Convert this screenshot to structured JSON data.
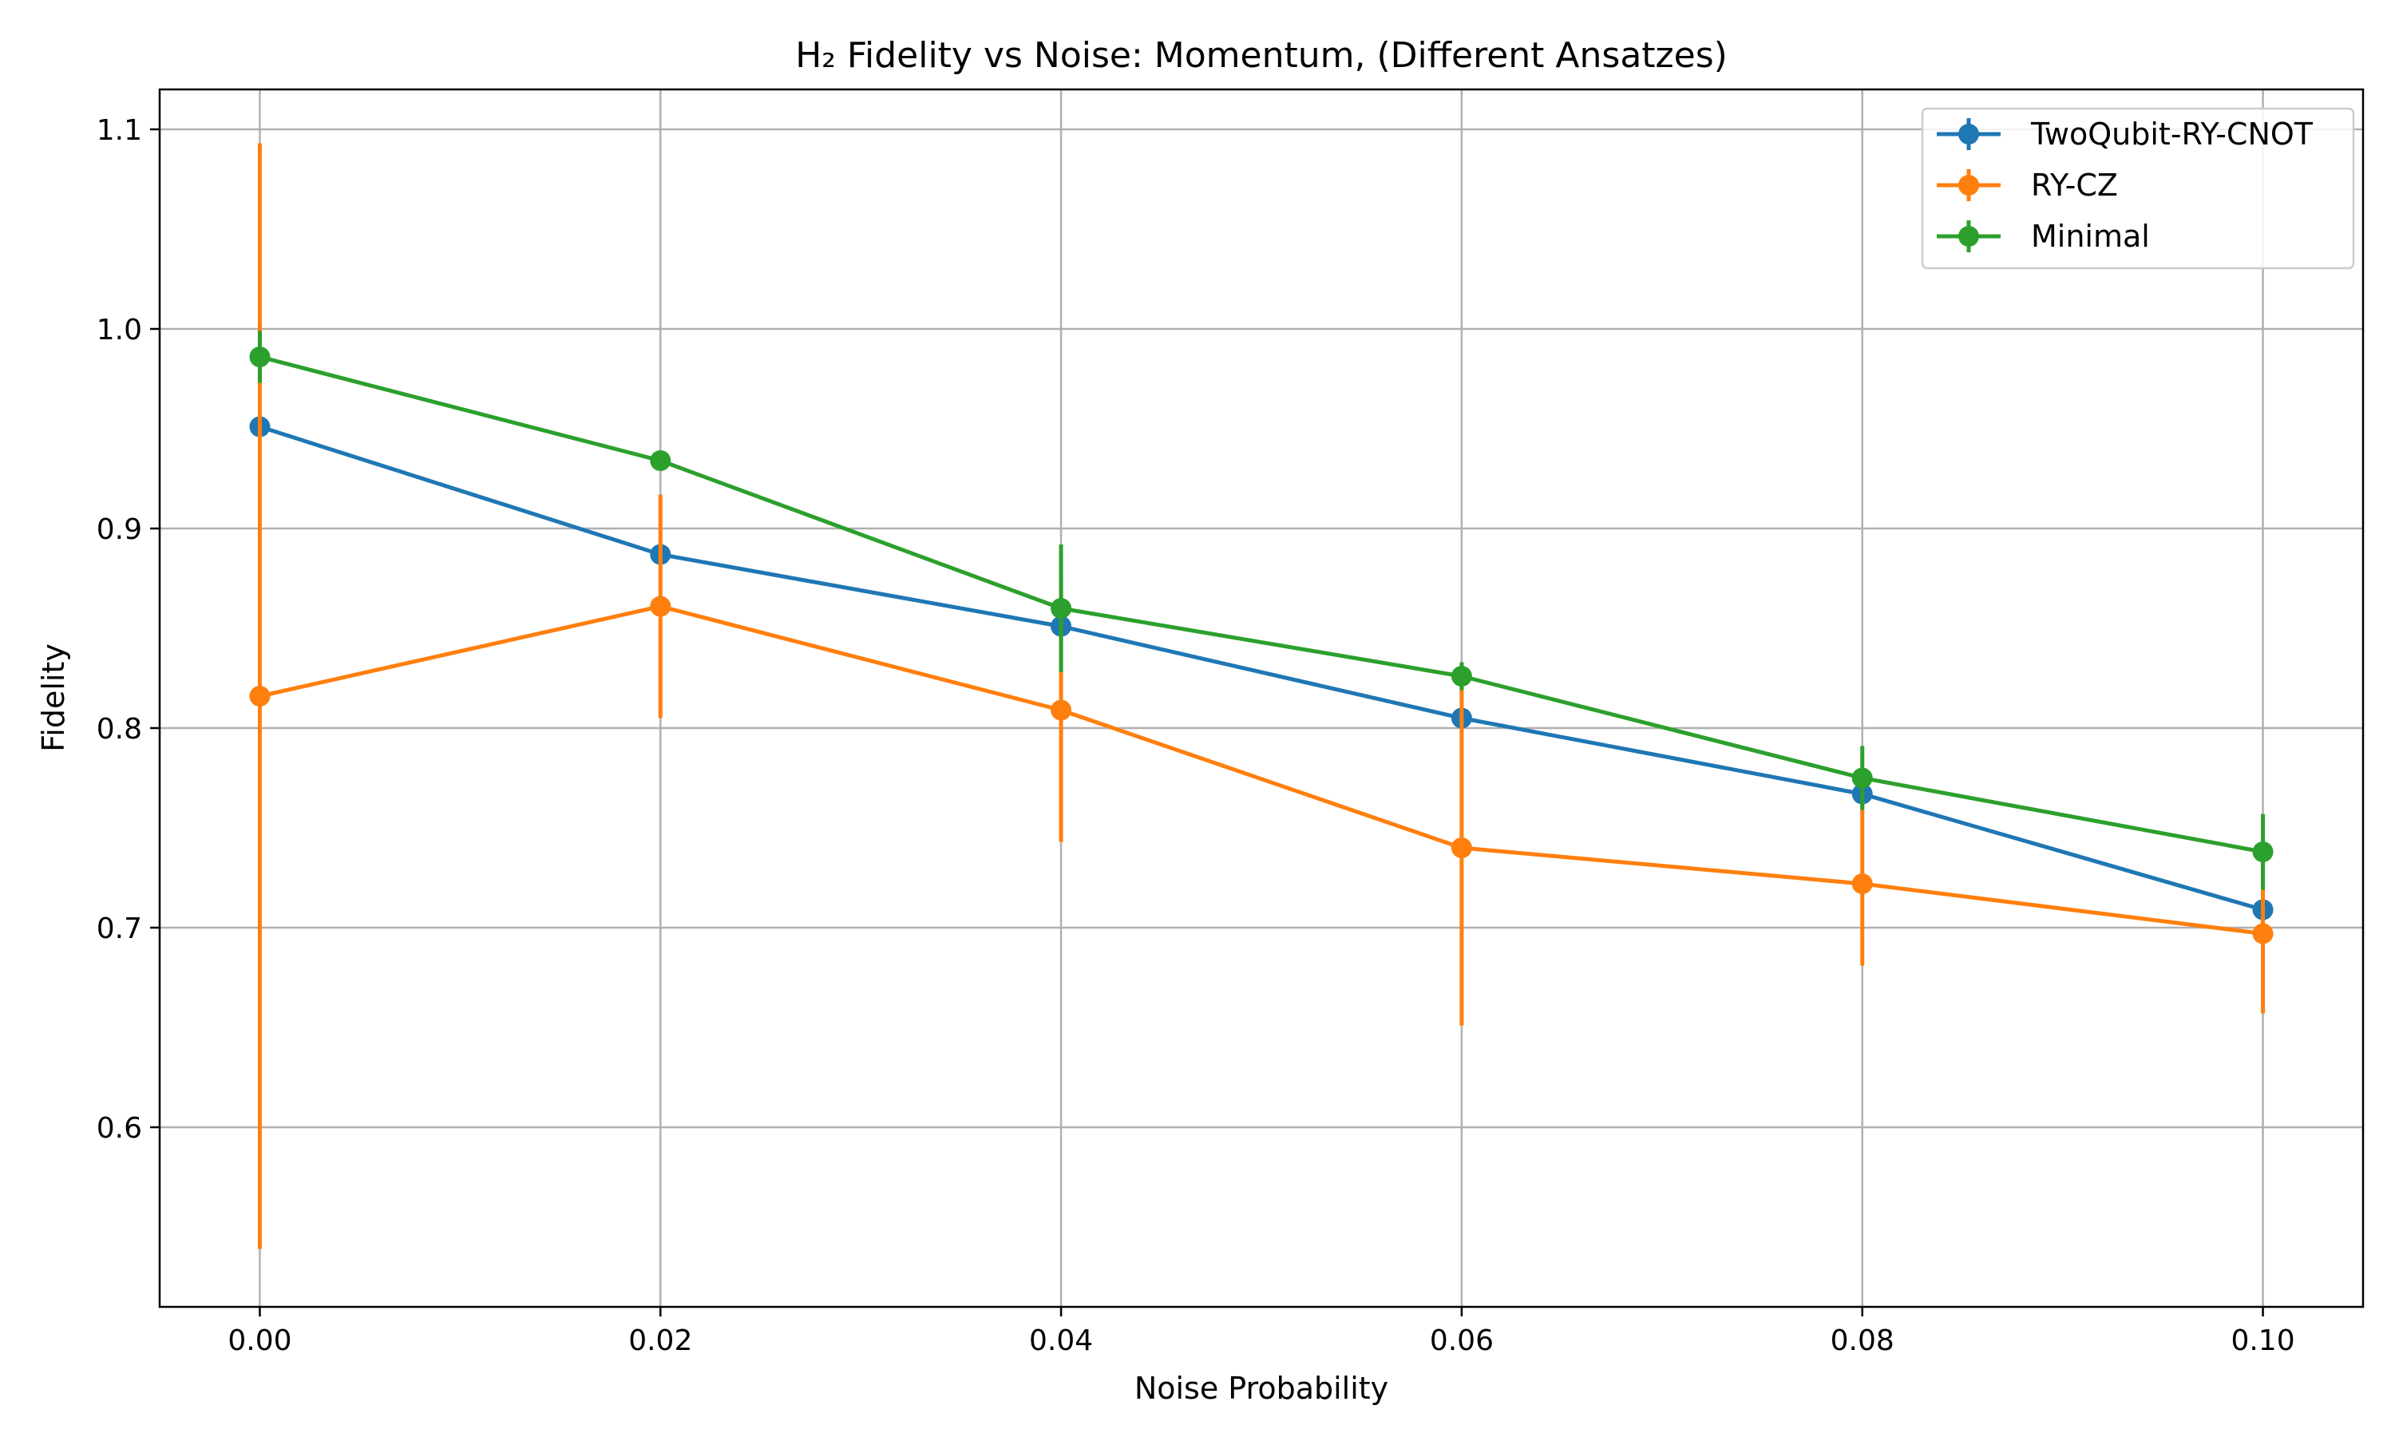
{
  "chart_data": {
    "type": "line",
    "title": "H₂ Fidelity vs Noise: Momentum, (Different Ansatzes)",
    "xlabel": "Noise Probability",
    "ylabel": "Fidelity",
    "xlim": [
      -0.005,
      0.105
    ],
    "ylim": [
      0.51,
      1.12
    ],
    "x": [
      0.0,
      0.02,
      0.04,
      0.06,
      0.08,
      0.1
    ],
    "x_tick_labels": [
      "0.00",
      "0.02",
      "0.04",
      "0.06",
      "0.08",
      "0.10"
    ],
    "y_ticks": [
      0.6,
      0.7,
      0.8,
      0.9,
      1.0,
      1.1
    ],
    "y_tick_labels": [
      "0.6",
      "0.7",
      "0.8",
      "0.9",
      "1.0",
      "1.1"
    ],
    "grid": true,
    "legend_position": "top-right",
    "series": [
      {
        "name": "TwoQubit-RY-CNOT",
        "color": "#1f77b4",
        "values": [
          0.951,
          0.887,
          0.851,
          0.805,
          0.767,
          0.709
        ],
        "error": [
          0.0,
          0.0,
          0.0,
          0.0,
          0.0,
          0.0
        ]
      },
      {
        "name": "RY-CZ",
        "color": "#ff7f0e",
        "values": [
          0.816,
          0.861,
          0.809,
          0.74,
          0.722,
          0.697
        ],
        "error": [
          0.277,
          0.056,
          0.066,
          0.089,
          0.041,
          0.04
        ]
      },
      {
        "name": "Minimal",
        "color": "#2ca02c",
        "values": [
          0.986,
          0.934,
          0.86,
          0.826,
          0.775,
          0.738
        ],
        "error": [
          0.013,
          0.0,
          0.032,
          0.007,
          0.016,
          0.019
        ]
      }
    ]
  }
}
